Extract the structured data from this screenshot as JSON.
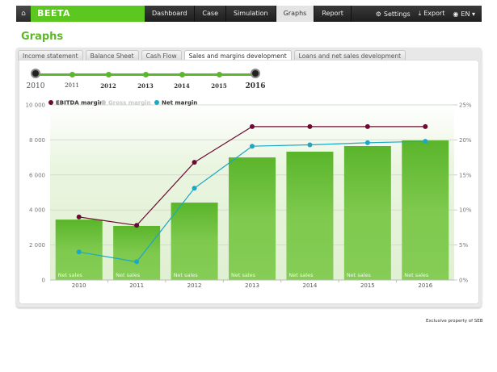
{
  "topbar": {
    "brand": "BEETA",
    "nav": [
      "Dashboard",
      "Case",
      "Simulation",
      "Graphs",
      "Report"
    ],
    "active_nav": "Graphs",
    "settings": "Settings",
    "export": "Export",
    "language": "EN"
  },
  "page_title": "Graphs",
  "tabs": [
    "Income statement",
    "Balance Sheet",
    "Cash Flow",
    "Sales and margins development",
    "Loans and net sales development"
  ],
  "active_tab": "Sales and margins development",
  "timeline": {
    "years": [
      "2010",
      "2011",
      "2012",
      "2013",
      "2014",
      "2015",
      "2016"
    ],
    "start": "2010",
    "end": "2016"
  },
  "footer": "Exclusive property of SEB",
  "colors": {
    "brand": "#5cc71e",
    "bar": "#84cc55",
    "ebitda": "#6b0a33",
    "net": "#1ba8c4",
    "gross": "#c8c8c8"
  },
  "chart_data": {
    "type": "bar",
    "categories": [
      "2010",
      "2011",
      "2012",
      "2013",
      "2014",
      "2015",
      "2016"
    ],
    "series": [
      {
        "name": "Net sales",
        "type": "bar",
        "axis": "left",
        "values": [
          3450,
          3090,
          4420,
          7000,
          7330,
          7650,
          7970
        ]
      },
      {
        "name": "EBITDA margin",
        "type": "line",
        "axis": "right",
        "unit": "%",
        "values": [
          9.0,
          7.8,
          16.8,
          21.9,
          21.9,
          21.9,
          21.9
        ]
      },
      {
        "name": "Gross margin",
        "type": "line",
        "axis": "right",
        "hidden": true,
        "values": []
      },
      {
        "name": "Net margin",
        "type": "line",
        "axis": "right",
        "unit": "%",
        "values": [
          4.0,
          2.6,
          13.1,
          19.1,
          19.3,
          19.6,
          19.8
        ]
      }
    ],
    "left_axis": {
      "ticks": [
        "0",
        "2 000",
        "4 000",
        "6 000",
        "8 000",
        "10 000"
      ],
      "ylim": [
        0,
        10000
      ]
    },
    "right_axis": {
      "ticks": [
        "0%",
        "5%",
        "10%",
        "15%",
        "20%",
        "25%"
      ],
      "ylim": [
        0,
        25
      ]
    },
    "bar_label": "Net sales",
    "legend": [
      "EBITDA margin",
      "Gross margin",
      "Net margin"
    ],
    "legend_position": "top-left",
    "grid": true
  }
}
